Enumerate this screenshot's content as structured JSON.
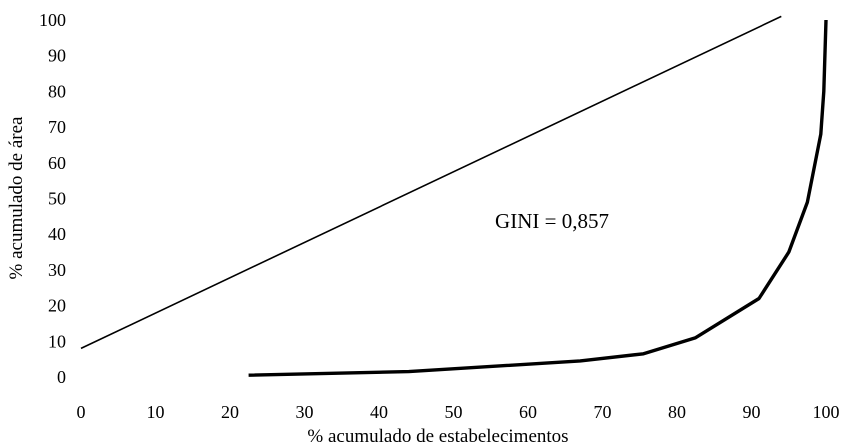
{
  "chart_data": {
    "type": "line",
    "xlabel": "% acumulado de estabelecimentos",
    "ylabel": "% acumulado de área",
    "xlim": [
      0,
      100
    ],
    "ylim": [
      0,
      100
    ],
    "x_ticks": [
      0,
      10,
      20,
      30,
      40,
      50,
      60,
      70,
      80,
      90,
      100
    ],
    "y_ticks": [
      0,
      10,
      20,
      30,
      40,
      50,
      60,
      70,
      80,
      90,
      100
    ],
    "grid": false,
    "legend": "none",
    "annotation": "GINI = 0,857",
    "series": [
      {
        "color": "#000000",
        "line_width": "thin",
        "points": [
          [
            0,
            8
          ],
          [
            94,
            101
          ]
        ]
      },
      {
        "color": "#000000",
        "line_width": "thick",
        "points": [
          [
            22.5,
            0.5
          ],
          [
            44,
            1.5
          ],
          [
            67,
            4.5
          ],
          [
            75.5,
            6.5
          ],
          [
            82.5,
            11
          ],
          [
            91,
            22
          ],
          [
            95,
            35
          ],
          [
            97.5,
            49
          ],
          [
            99.3,
            68
          ],
          [
            99.7,
            80
          ],
          [
            100,
            100
          ]
        ]
      }
    ]
  }
}
